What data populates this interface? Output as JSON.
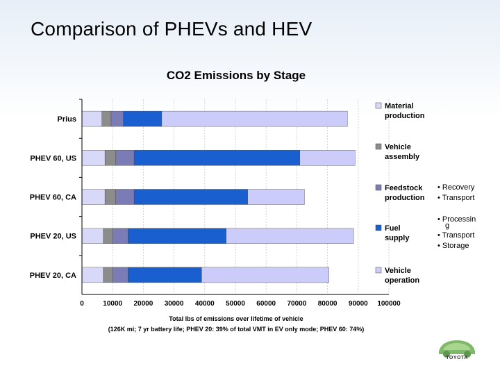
{
  "slide_title": "Comparison of PHEVs and HEV",
  "logo_text": "TOYOTA",
  "chart_data": {
    "type": "bar",
    "orientation": "horizontal",
    "stacked": true,
    "title": "CO2 Emissions by Stage",
    "xlabel": "Total lbs of emissions over lifetime of vehicle",
    "xlabel_note": "(126K mi; 7 yr battery life; PHEV 20: 39% of total VMT in EV only mode; PHEV 60: 74%)",
    "xlim": [
      0,
      100000
    ],
    "xticks": [
      "0",
      "10000",
      "20000",
      "30000",
      "40000",
      "50000",
      "60000",
      "70000",
      "80000",
      "90000",
      "100000"
    ],
    "legend_position": "right",
    "categories": [
      "Prius",
      "PHEV 60, US",
      "PHEV 60, CA",
      "PHEV 20, US",
      "PHEV 20, CA"
    ],
    "series": [
      {
        "name": "Material production",
        "color": "#d8d8f8",
        "values": [
          6500,
          7500,
          7500,
          7000,
          7000
        ]
      },
      {
        "name": "Vehicle assembly",
        "color": "#8c8c8c",
        "values": [
          3000,
          3500,
          3500,
          3000,
          3000
        ]
      },
      {
        "name": "Feedstock production",
        "color": "#7b7bb5",
        "values": [
          4000,
          6000,
          6000,
          5000,
          5000
        ]
      },
      {
        "name": "Fuel supply",
        "color": "#1a5fcf",
        "values": [
          12500,
          54000,
          37000,
          32000,
          24000
        ]
      },
      {
        "name": "Vehicle operation",
        "color": "#ccccfb",
        "values": [
          60500,
          18000,
          18500,
          41500,
          41500
        ]
      }
    ],
    "legend_notes": [
      {
        "series": "Feedstock production",
        "items": [
          "Recovery",
          "Transport"
        ]
      },
      {
        "series": "Fuel supply",
        "items": [
          "Processin g",
          "Transport",
          "Storage"
        ]
      }
    ]
  }
}
